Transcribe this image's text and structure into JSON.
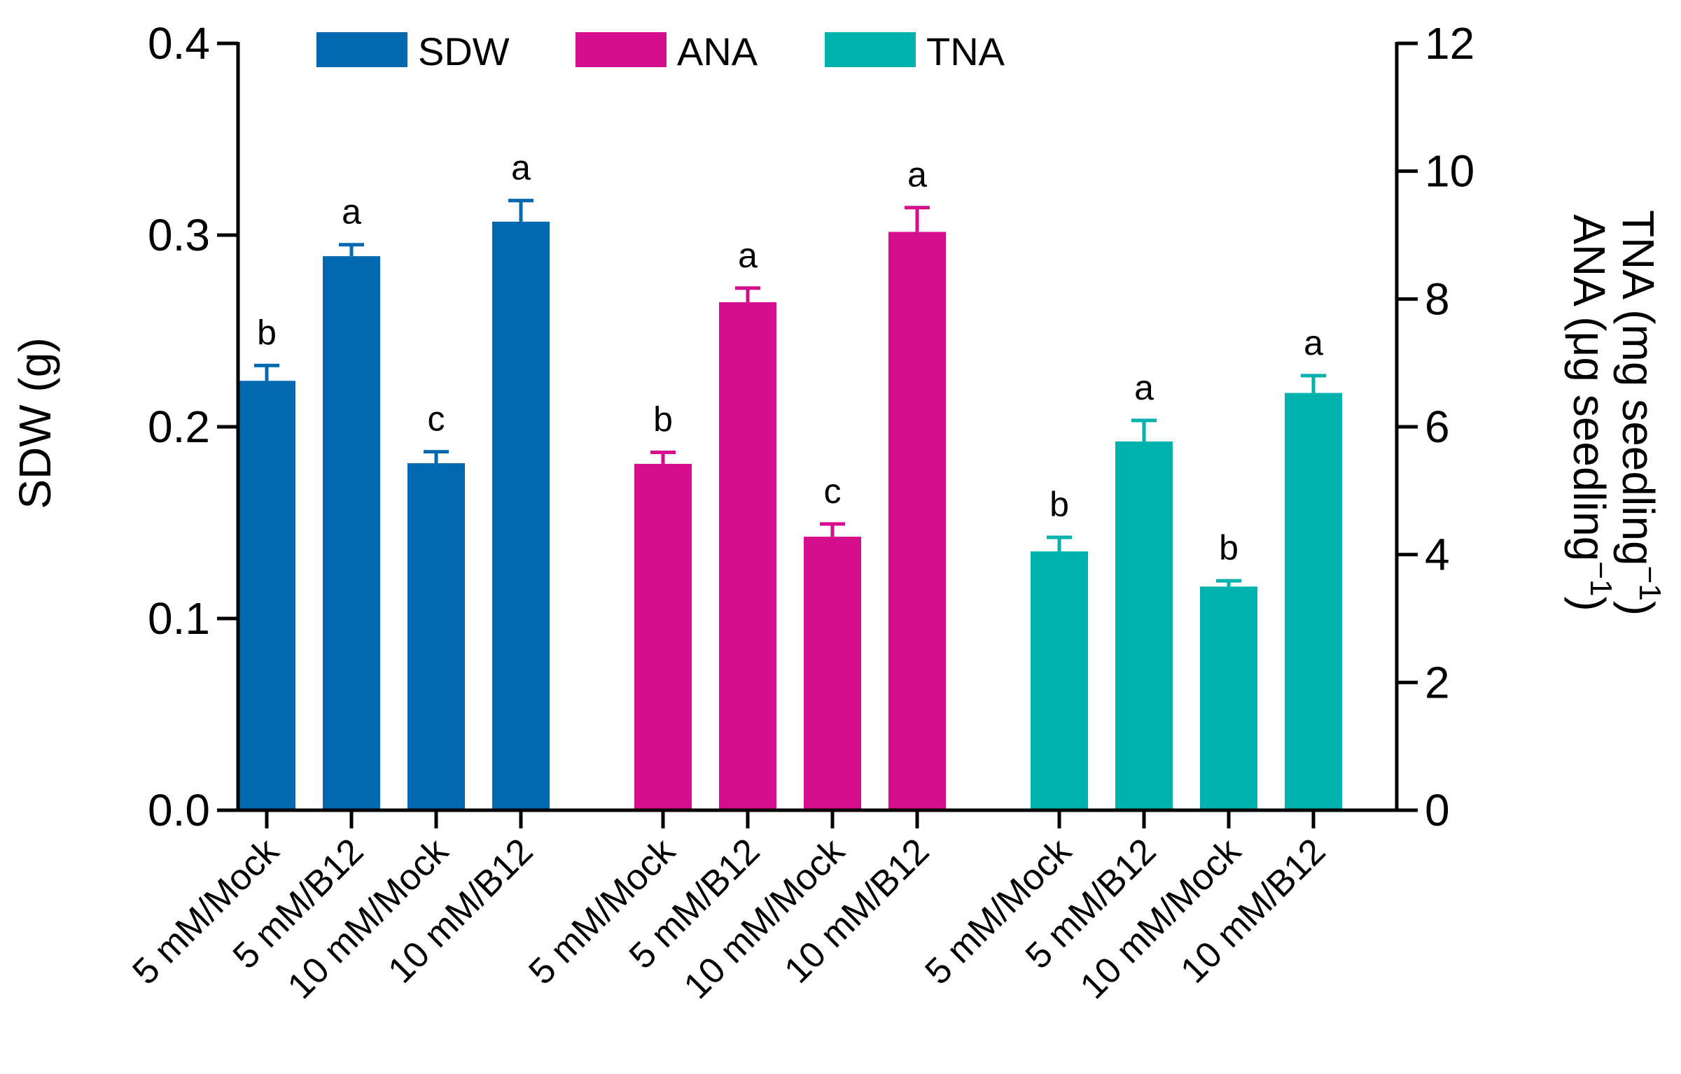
{
  "chart_data": {
    "type": "bar",
    "title": "",
    "ylabel": "SDW (g)",
    "y2label_line1": "TNA (mg seedling",
    "y2label_line2": "ANA (μg seedling",
    "y2label_sup": "−1",
    "y2label_close": ")",
    "ylim": [
      0,
      0.4
    ],
    "y2lim": [
      0,
      12
    ],
    "yticks": [
      "0.0",
      "0.1",
      "0.2",
      "0.3",
      "0.4"
    ],
    "y2ticks": [
      "0",
      "2",
      "4",
      "6",
      "8",
      "10",
      "12"
    ],
    "legend_position": "top",
    "categories": [
      "5 mM/Mock",
      "5 mM/B12",
      "10 mM/Mock",
      "10 mM/B12"
    ],
    "series": [
      {
        "name": "SDW",
        "axis": "left",
        "color": "#0268B0",
        "values": [
          0.224,
          0.289,
          0.181,
          0.307
        ],
        "errors": [
          0.008,
          0.006,
          0.006,
          0.011
        ],
        "letters": [
          "b",
          "a",
          "c",
          "a"
        ]
      },
      {
        "name": "ANA",
        "axis": "right",
        "color": "#D60D8C",
        "values": [
          5.42,
          7.95,
          4.28,
          9.05
        ],
        "errors": [
          0.18,
          0.22,
          0.2,
          0.38
        ],
        "letters": [
          "b",
          "a",
          "c",
          "a"
        ]
      },
      {
        "name": "TNA",
        "axis": "right",
        "color": "#00B2AD",
        "values": [
          4.05,
          5.77,
          3.5,
          6.53
        ],
        "errors": [
          0.22,
          0.33,
          0.09,
          0.27
        ],
        "letters": [
          "b",
          "a",
          "b",
          "a"
        ]
      }
    ]
  }
}
